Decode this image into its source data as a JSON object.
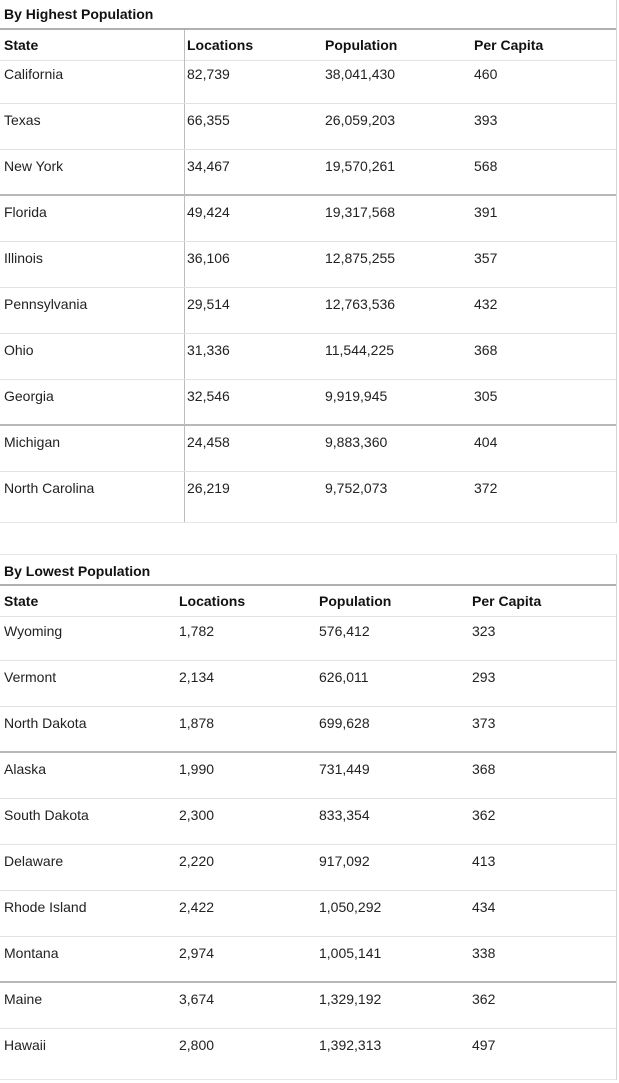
{
  "highest": {
    "title": "By Highest Population",
    "headers": [
      "State",
      "Locations",
      "Population",
      "Per Capita"
    ],
    "rows": [
      [
        "California",
        "82,739",
        "38,041,430",
        "460"
      ],
      [
        "Texas",
        "66,355",
        "26,059,203",
        "393"
      ],
      [
        "New York",
        "34,467",
        "19,570,261",
        "568"
      ],
      [
        "Florida",
        "49,424",
        "19,317,568",
        "391"
      ],
      [
        "Illinois",
        "36,106",
        "12,875,255",
        "357"
      ],
      [
        "Pennsylvania",
        "29,514",
        "12,763,536",
        "432"
      ],
      [
        "Ohio",
        "31,336",
        "11,544,225",
        "368"
      ],
      [
        "Georgia",
        "32,546",
        "9,919,945",
        "305"
      ],
      [
        "Michigan",
        "24,458",
        "9,883,360",
        "404"
      ],
      [
        "North Carolina",
        "26,219",
        "9,752,073",
        "372"
      ]
    ]
  },
  "lowest": {
    "title": "By Lowest Population",
    "headers": [
      "State",
      "Locations",
      "Population",
      "Per Capita"
    ],
    "rows": [
      [
        "Wyoming",
        "1,782",
        "576,412",
        "323"
      ],
      [
        "Vermont",
        "2,134",
        "626,011",
        "293"
      ],
      [
        "North Dakota",
        "1,878",
        "699,628",
        "373"
      ],
      [
        "Alaska",
        "1,990",
        "731,449",
        "368"
      ],
      [
        "South Dakota",
        "2,300",
        "833,354",
        "362"
      ],
      [
        "Delaware",
        "2,220",
        "917,092",
        "413"
      ],
      [
        "Rhode Island",
        "2,422",
        "1,050,292",
        "434"
      ],
      [
        "Montana",
        "2,974",
        "1,005,141",
        "338"
      ],
      [
        "Maine",
        "3,674",
        "1,329,192",
        "362"
      ],
      [
        "Hawaii",
        "2,800",
        "1,392,313",
        "497"
      ]
    ]
  }
}
